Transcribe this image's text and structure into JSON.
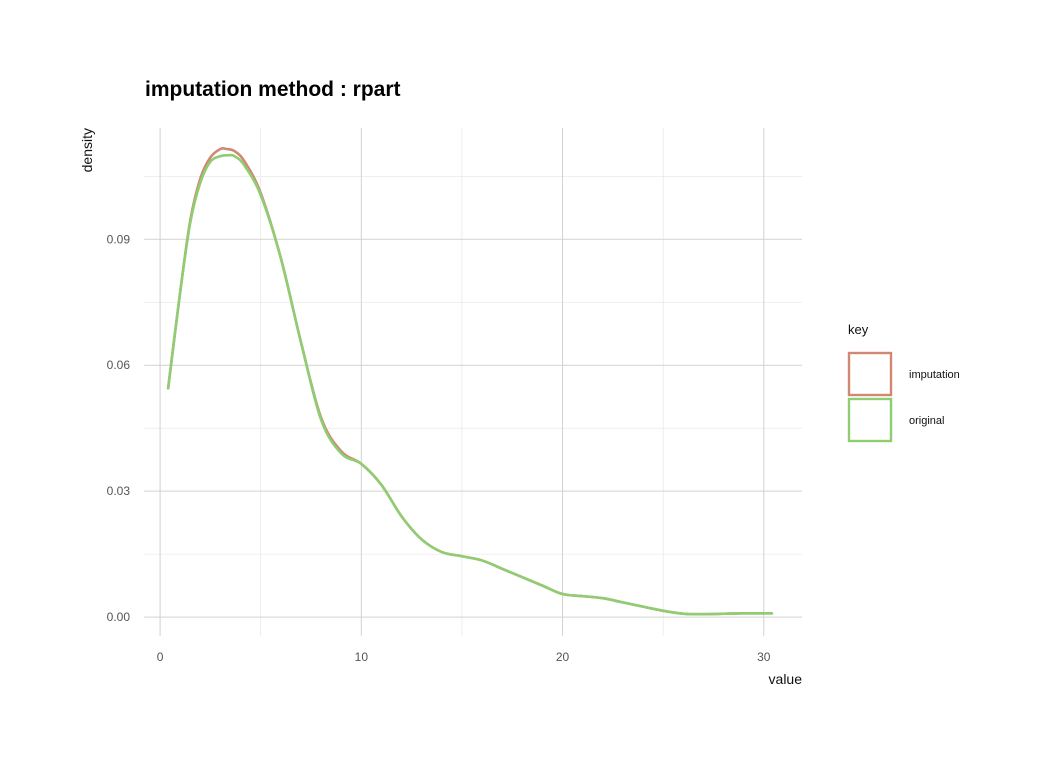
{
  "chart_data": {
    "type": "line",
    "title": "imputation method : rpart",
    "xlabel": "value",
    "ylabel": "density",
    "xlim": [
      -0.8,
      31.9
    ],
    "ylim": [
      -0.0045,
      0.1165
    ],
    "x_ticks": [
      0,
      10,
      20,
      30
    ],
    "y_ticks": [
      0.0,
      0.03,
      0.06,
      0.09
    ],
    "x_tick_labels": [
      "0",
      "10",
      "20",
      "30"
    ],
    "y_tick_labels": [
      "0.00",
      "0.03",
      "0.06",
      "0.09"
    ],
    "grid": true,
    "legend": {
      "title": "key",
      "position": "right"
    },
    "series": [
      {
        "name": "imputation",
        "color": "#d08873",
        "x": [
          0.4,
          1.0,
          1.5,
          2.0,
          2.5,
          3.0,
          3.3,
          3.7,
          4.2,
          5.0,
          6.0,
          7.0,
          8.0,
          9.0,
          10.0,
          11.0,
          12.0,
          13.0,
          14.0,
          15.0,
          16.0,
          17.0,
          18.0,
          19.0,
          20.0,
          21.0,
          22.0,
          23.0,
          24.0,
          25.0,
          26.0,
          27.0,
          28.0,
          29.0,
          30.0,
          30.4
        ],
        "y": [
          0.0545,
          0.0775,
          0.0945,
          0.1045,
          0.1095,
          0.1115,
          0.1115,
          0.111,
          0.1085,
          0.101,
          0.0855,
          0.0655,
          0.0475,
          0.0395,
          0.0365,
          0.0315,
          0.024,
          0.0185,
          0.0155,
          0.0145,
          0.0135,
          0.0115,
          0.0095,
          0.0075,
          0.0055,
          0.005,
          0.0045,
          0.0035,
          0.0025,
          0.0015,
          0.0008,
          0.0007,
          0.0008,
          0.0009,
          0.0009,
          0.0009
        ]
      },
      {
        "name": "original",
        "color": "#8fcd72",
        "x": [
          0.4,
          1.0,
          1.5,
          2.0,
          2.5,
          3.0,
          3.3,
          3.7,
          4.2,
          5.0,
          6.0,
          7.0,
          8.0,
          9.0,
          10.0,
          11.0,
          12.0,
          13.0,
          14.0,
          15.0,
          16.0,
          17.0,
          18.0,
          19.0,
          20.0,
          21.0,
          22.0,
          23.0,
          24.0,
          25.0,
          26.0,
          27.0,
          28.0,
          29.0,
          30.0,
          30.4
        ],
        "y": [
          0.0545,
          0.0775,
          0.094,
          0.1035,
          0.1085,
          0.1098,
          0.11,
          0.1098,
          0.1075,
          0.1005,
          0.0855,
          0.0655,
          0.047,
          0.039,
          0.0365,
          0.0315,
          0.024,
          0.0185,
          0.0155,
          0.0145,
          0.0135,
          0.0115,
          0.0095,
          0.0075,
          0.0055,
          0.005,
          0.0045,
          0.0035,
          0.0025,
          0.0015,
          0.0008,
          0.0007,
          0.0008,
          0.0009,
          0.0009,
          0.0009
        ]
      }
    ]
  }
}
